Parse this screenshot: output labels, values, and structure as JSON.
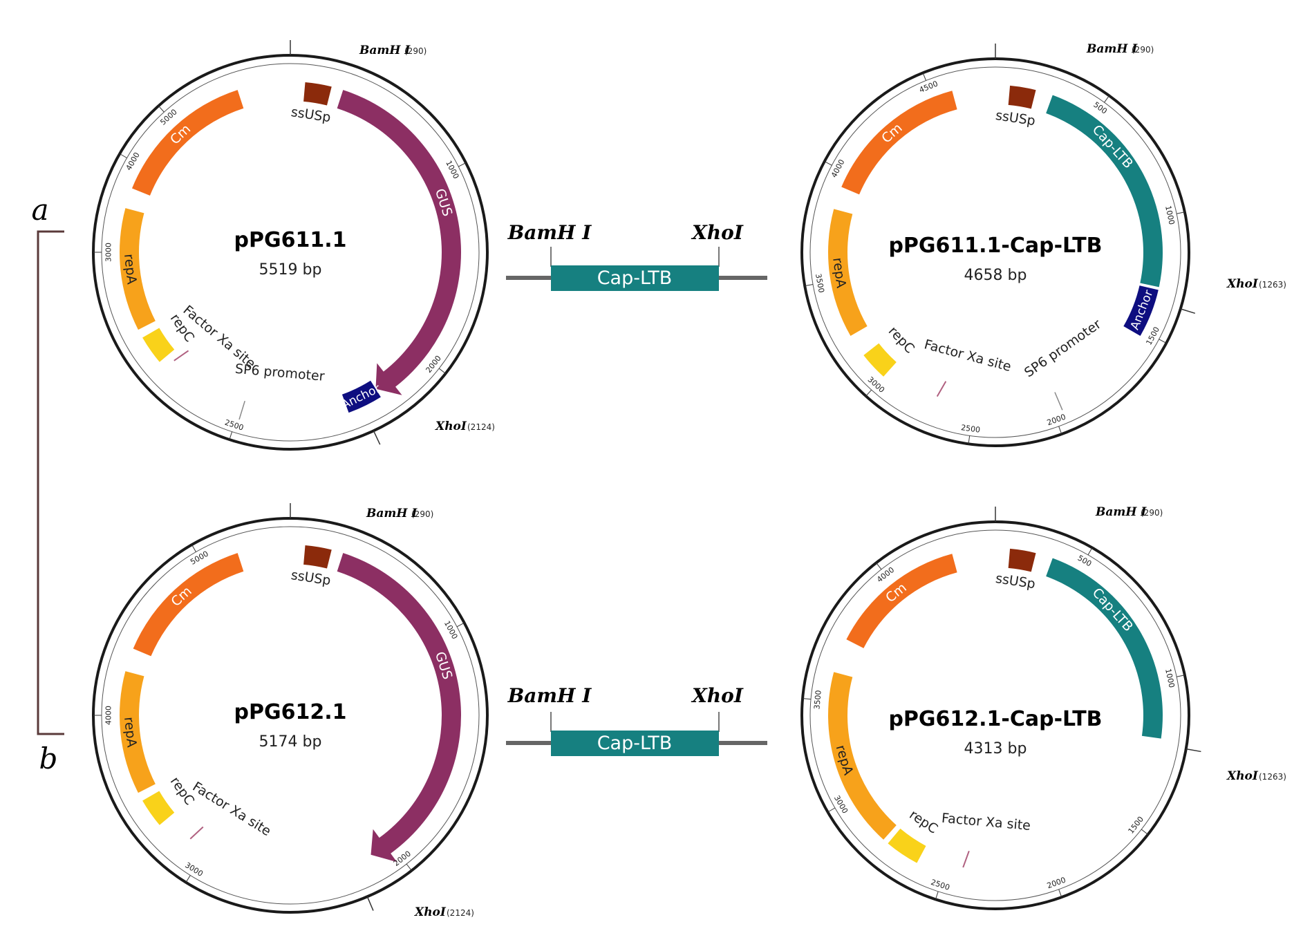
{
  "panel_labels": {
    "a": "a",
    "b": "b"
  },
  "colors": {
    "cm": "#f26d1c",
    "repA": "#f7a21b",
    "repC": "#f9d21a",
    "ssUSp": "#8b2a0b",
    "gus": "#8c2f63",
    "anchor": "#0e0e80",
    "capltb": "#168080",
    "backbone": "#1a1a1a"
  },
  "insert_fragments": [
    {
      "left_site": "BamH I",
      "right_site": "XhoI",
      "label": "Cap-LTB"
    },
    {
      "left_site": "BamH I",
      "right_site": "XhoI",
      "label": "Cap-LTB"
    }
  ],
  "plasmids": [
    {
      "name": "pPG611.1",
      "size": "5519 bp",
      "features": {
        "cm": "Cm",
        "repA": "repA",
        "repC": "repC",
        "ssUSp": "ssUSp",
        "gus": "GUS",
        "anchor": "Anchor",
        "sp6": "SP6 promoter",
        "factorXa": "Factor Xa site"
      },
      "ticks": [
        "1000",
        "2000",
        "2500",
        "3000",
        "4000",
        "5000"
      ],
      "sites": [
        {
          "name": "BamH I",
          "pos": "(290)"
        },
        {
          "name": "XhoI",
          "pos": "(2124)"
        }
      ]
    },
    {
      "name": "pPG611.1-Cap-LTB",
      "size": "4658 bp",
      "features": {
        "cm": "Cm",
        "repA": "repA",
        "repC": "repC",
        "ssUSp": "ssUSp",
        "cap": "Cap-LTB",
        "anchor": "Anchor",
        "sp6": "SP6 promoter",
        "factorXa": "Factor Xa site"
      },
      "ticks": [
        "500",
        "1000",
        "1500",
        "2000",
        "2500",
        "3000",
        "3500",
        "4000",
        "4500"
      ],
      "sites": [
        {
          "name": "BamH I",
          "pos": "(290)"
        },
        {
          "name": "XhoI",
          "pos": "(1263)"
        }
      ]
    },
    {
      "name": "pPG612.1",
      "size": "5174 bp",
      "features": {
        "cm": "Cm",
        "repA": "repA",
        "repC": "repC",
        "ssUSp": "ssUSp",
        "gus": "GUS",
        "factorXa": "Factor Xa site"
      },
      "ticks": [
        "1000",
        "2000",
        "3000",
        "4000",
        "5000"
      ],
      "sites": [
        {
          "name": "BamH I",
          "pos": "(290)"
        },
        {
          "name": "XhoI",
          "pos": "(2124)"
        }
      ]
    },
    {
      "name": "pPG612.1-Cap-LTB",
      "size": "4313 bp",
      "features": {
        "cm": "Cm",
        "repA": "repA",
        "repC": "repC",
        "ssUSp": "ssUSp",
        "cap": "Cap-LTB",
        "factorXa": "Factor Xa site"
      },
      "ticks": [
        "500",
        "1000",
        "1500",
        "2000",
        "2500",
        "3000",
        "3500",
        "4000"
      ],
      "sites": [
        {
          "name": "BamH I",
          "pos": "(290)"
        },
        {
          "name": "XhoI",
          "pos": "(1263)"
        }
      ]
    }
  ]
}
